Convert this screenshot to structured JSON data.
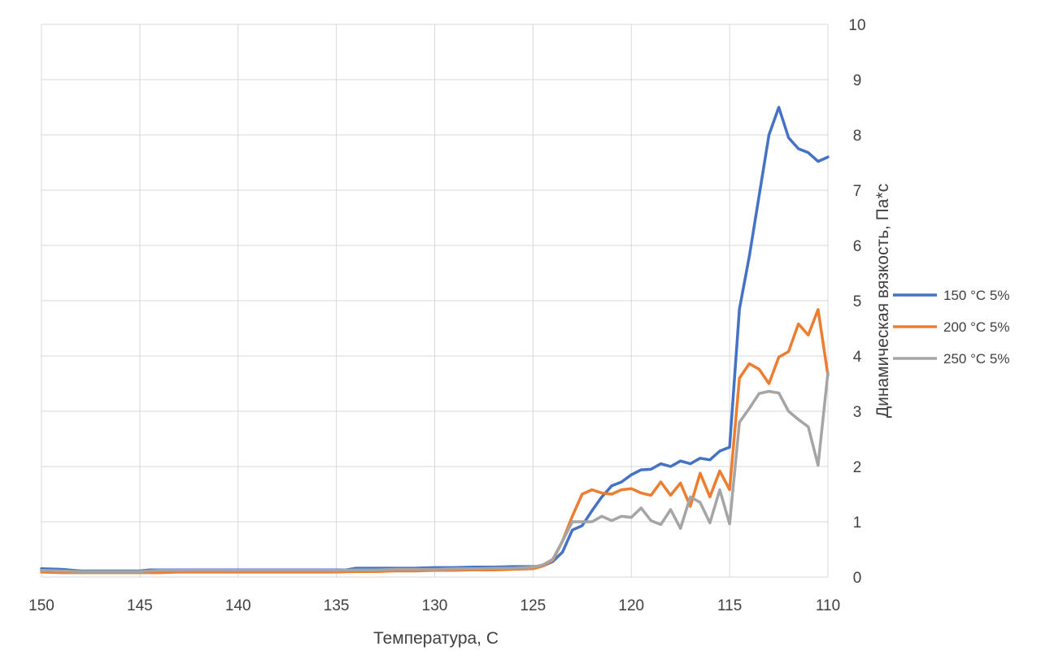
{
  "chart_data": {
    "type": "line",
    "title": "",
    "xlabel": "Температура, С",
    "ylabel": "Динамическая вязкость, Па*с",
    "xlim": [
      150,
      110
    ],
    "ylim": [
      0,
      10
    ],
    "x_reversed": true,
    "y_axis_side": "right",
    "grid": true,
    "legend_position": "right",
    "x_ticks": [
      "150",
      "145",
      "140",
      "135",
      "130",
      "125",
      "120",
      "115",
      "110"
    ],
    "y_ticks": [
      "0",
      "1",
      "2",
      "3",
      "4",
      "5",
      "6",
      "7",
      "8",
      "9",
      "10"
    ],
    "series": [
      {
        "name": "150 °C 5%",
        "color": "#4472C4",
        "points": [
          [
            150,
            0.15
          ],
          [
            149,
            0.14
          ],
          [
            148,
            0.11
          ],
          [
            147,
            0.11
          ],
          [
            146,
            0.11
          ],
          [
            145,
            0.11
          ],
          [
            144.5,
            0.13
          ],
          [
            144,
            0.13
          ],
          [
            143,
            0.13
          ],
          [
            142,
            0.13
          ],
          [
            141,
            0.13
          ],
          [
            140,
            0.13
          ],
          [
            139,
            0.13
          ],
          [
            138,
            0.13
          ],
          [
            137,
            0.13
          ],
          [
            136,
            0.13
          ],
          [
            135,
            0.13
          ],
          [
            134.5,
            0.13
          ],
          [
            134,
            0.16
          ],
          [
            133,
            0.16
          ],
          [
            132,
            0.16
          ],
          [
            131,
            0.16
          ],
          [
            130,
            0.17
          ],
          [
            129,
            0.17
          ],
          [
            128,
            0.18
          ],
          [
            127,
            0.18
          ],
          [
            126,
            0.19
          ],
          [
            125,
            0.19
          ],
          [
            124.5,
            0.2
          ],
          [
            124,
            0.28
          ],
          [
            123.5,
            0.45
          ],
          [
            123,
            0.85
          ],
          [
            122.5,
            0.93
          ],
          [
            122,
            1.2
          ],
          [
            121.5,
            1.45
          ],
          [
            121,
            1.65
          ],
          [
            120.5,
            1.72
          ],
          [
            120,
            1.85
          ],
          [
            119.5,
            1.94
          ],
          [
            119,
            1.95
          ],
          [
            118.5,
            2.05
          ],
          [
            118,
            2.0
          ],
          [
            117.5,
            2.1
          ],
          [
            117,
            2.05
          ],
          [
            116.5,
            2.15
          ],
          [
            116,
            2.12
          ],
          [
            115.5,
            2.28
          ],
          [
            115,
            2.35
          ],
          [
            114.5,
            4.85
          ],
          [
            114,
            5.8
          ],
          [
            113.5,
            6.9
          ],
          [
            113,
            8.0
          ],
          [
            112.5,
            8.5
          ],
          [
            112,
            7.95
          ],
          [
            111.5,
            7.75
          ],
          [
            111,
            7.68
          ],
          [
            110.5,
            7.52
          ],
          [
            110,
            7.6
          ]
        ]
      },
      {
        "name": "200 °C 5%",
        "color": "#ED7D31",
        "points": [
          [
            150,
            0.09
          ],
          [
            149,
            0.08
          ],
          [
            148,
            0.08
          ],
          [
            147,
            0.08
          ],
          [
            146,
            0.08
          ],
          [
            145,
            0.08
          ],
          [
            144,
            0.08
          ],
          [
            143,
            0.09
          ],
          [
            142,
            0.09
          ],
          [
            141,
            0.09
          ],
          [
            140,
            0.09
          ],
          [
            139,
            0.09
          ],
          [
            138,
            0.09
          ],
          [
            137,
            0.09
          ],
          [
            136,
            0.09
          ],
          [
            135,
            0.09
          ],
          [
            134,
            0.1
          ],
          [
            133,
            0.1
          ],
          [
            132,
            0.11
          ],
          [
            131,
            0.11
          ],
          [
            130,
            0.12
          ],
          [
            129,
            0.12
          ],
          [
            128,
            0.13
          ],
          [
            127,
            0.13
          ],
          [
            126,
            0.14
          ],
          [
            125,
            0.15
          ],
          [
            124.5,
            0.2
          ],
          [
            124,
            0.3
          ],
          [
            123.5,
            0.65
          ],
          [
            123,
            1.1
          ],
          [
            122.5,
            1.5
          ],
          [
            122,
            1.58
          ],
          [
            121.5,
            1.52
          ],
          [
            121,
            1.5
          ],
          [
            120.5,
            1.58
          ],
          [
            120,
            1.6
          ],
          [
            119.5,
            1.52
          ],
          [
            119,
            1.48
          ],
          [
            118.5,
            1.72
          ],
          [
            118,
            1.48
          ],
          [
            117.5,
            1.7
          ],
          [
            117,
            1.28
          ],
          [
            116.5,
            1.88
          ],
          [
            116,
            1.45
          ],
          [
            115.5,
            1.92
          ],
          [
            115,
            1.58
          ],
          [
            114.5,
            3.6
          ],
          [
            114,
            3.86
          ],
          [
            113.5,
            3.76
          ],
          [
            113,
            3.5
          ],
          [
            112.5,
            3.98
          ],
          [
            112,
            4.08
          ],
          [
            111.5,
            4.58
          ],
          [
            111,
            4.38
          ],
          [
            110.5,
            4.84
          ],
          [
            110,
            3.65
          ]
        ]
      },
      {
        "name": "250 °C 5%",
        "color": "#A5A5A5",
        "points": [
          [
            150,
            0.12
          ],
          [
            149,
            0.11
          ],
          [
            148,
            0.1
          ],
          [
            147,
            0.1
          ],
          [
            146,
            0.1
          ],
          [
            145,
            0.1
          ],
          [
            144,
            0.12
          ],
          [
            143,
            0.12
          ],
          [
            142,
            0.12
          ],
          [
            141,
            0.12
          ],
          [
            140,
            0.12
          ],
          [
            139,
            0.12
          ],
          [
            138,
            0.12
          ],
          [
            137,
            0.12
          ],
          [
            136,
            0.12
          ],
          [
            135,
            0.12
          ],
          [
            134,
            0.13
          ],
          [
            133,
            0.13
          ],
          [
            132,
            0.14
          ],
          [
            131,
            0.14
          ],
          [
            130,
            0.14
          ],
          [
            129,
            0.15
          ],
          [
            128,
            0.15
          ],
          [
            127,
            0.16
          ],
          [
            126,
            0.16
          ],
          [
            125,
            0.18
          ],
          [
            124.5,
            0.22
          ],
          [
            124,
            0.32
          ],
          [
            123.5,
            0.65
          ],
          [
            123,
            1.0
          ],
          [
            122.5,
            1.0
          ],
          [
            122,
            1.0
          ],
          [
            121.5,
            1.1
          ],
          [
            121,
            1.02
          ],
          [
            120.5,
            1.1
          ],
          [
            120,
            1.08
          ],
          [
            119.5,
            1.25
          ],
          [
            119,
            1.02
          ],
          [
            118.5,
            0.95
          ],
          [
            118,
            1.22
          ],
          [
            117.5,
            0.88
          ],
          [
            117,
            1.45
          ],
          [
            116.5,
            1.35
          ],
          [
            116,
            0.98
          ],
          [
            115.5,
            1.58
          ],
          [
            115,
            0.96
          ],
          [
            114.5,
            2.8
          ],
          [
            114,
            3.05
          ],
          [
            113.5,
            3.32
          ],
          [
            113,
            3.36
          ],
          [
            112.5,
            3.33
          ],
          [
            112,
            3.0
          ],
          [
            111.5,
            2.85
          ],
          [
            111,
            2.72
          ],
          [
            110.5,
            2.02
          ],
          [
            110,
            3.7
          ]
        ]
      }
    ]
  }
}
